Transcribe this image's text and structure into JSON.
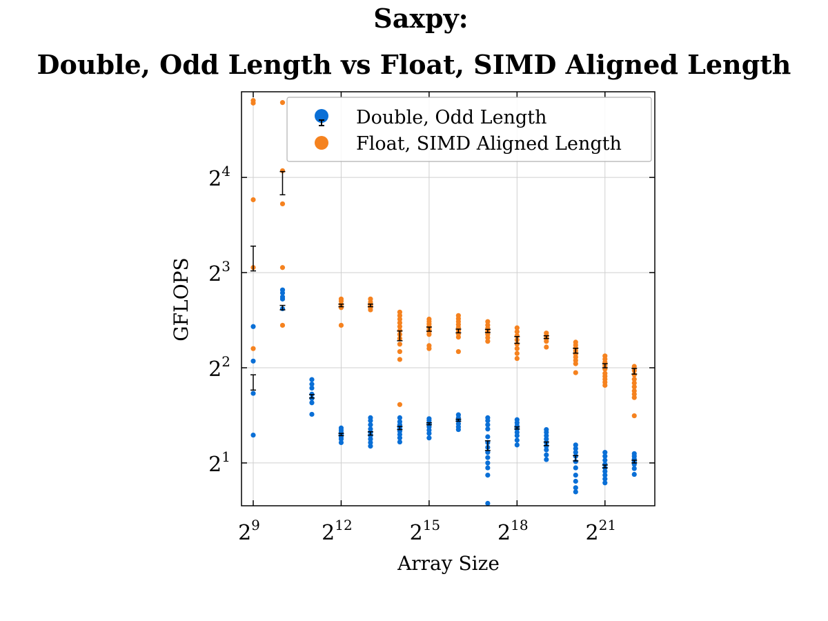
{
  "chart_data": {
    "type": "scatter",
    "title": [
      "Saxpy:",
      "Double, Odd Length vs Float, SIMD Aligned Length"
    ],
    "xlabel": "Array Size",
    "ylabel": "GFLOPS",
    "x_scale": "log2",
    "y_scale": "log2",
    "x_exponent_range": [
      8.6,
      22.7
    ],
    "y_exponent_range": [
      0.55,
      4.9
    ],
    "x_ticks": [
      {
        "exp": 9,
        "base": "2",
        "sup": "9"
      },
      {
        "exp": 12,
        "base": "2",
        "sup": "12"
      },
      {
        "exp": 15,
        "base": "2",
        "sup": "15"
      },
      {
        "exp": 18,
        "base": "2",
        "sup": "18"
      },
      {
        "exp": 21,
        "base": "2",
        "sup": "21"
      }
    ],
    "y_ticks": [
      {
        "exp": 1,
        "base": "2",
        "sup": "1"
      },
      {
        "exp": 2,
        "base": "2",
        "sup": "2"
      },
      {
        "exp": 3,
        "base": "2",
        "sup": "3"
      },
      {
        "exp": 4,
        "base": "2",
        "sup": "4"
      }
    ],
    "grid": true,
    "legend_position": "top-right",
    "colors": {
      "double": "#0a6fd6",
      "float": "#f5821f",
      "errorbar": "#000000",
      "grid": "#cfcfcf"
    },
    "series": [
      {
        "name": "Double, Odd Length",
        "x_exponents": [
          9,
          10,
          11,
          12,
          13,
          14,
          15,
          16,
          17,
          18,
          19,
          20,
          21,
          22
        ],
        "samples": [
          [
            2.45,
            3.32,
            4.2,
            5.4
          ],
          [
            6.15,
            6.6,
            6.7,
            6.9,
            7.05
          ],
          [
            2.85,
            3.1,
            3.2,
            3.3,
            3.45,
            3.55,
            3.67
          ],
          [
            2.32,
            2.38,
            2.42,
            2.46,
            2.5,
            2.54,
            2.58
          ],
          [
            2.26,
            2.32,
            2.38,
            2.44,
            2.5,
            2.56,
            2.64,
            2.72,
            2.78
          ],
          [
            2.33,
            2.4,
            2.46,
            2.52,
            2.58,
            2.64,
            2.7,
            2.78
          ],
          [
            2.4,
            2.48,
            2.54,
            2.6,
            2.66,
            2.72,
            2.76
          ],
          [
            2.55,
            2.6,
            2.66,
            2.72,
            2.78,
            2.84
          ],
          [
            1.49,
            1.83,
            1.93,
            2.0,
            2.08,
            2.16,
            2.24,
            2.32,
            2.42,
            2.56,
            2.64,
            2.72,
            2.78
          ],
          [
            2.28,
            2.36,
            2.44,
            2.5,
            2.56,
            2.62,
            2.68,
            2.74
          ],
          [
            2.05,
            2.12,
            2.2,
            2.26,
            2.32,
            2.38,
            2.44,
            2.5,
            2.55
          ],
          [
            1.62,
            1.67,
            1.75,
            1.83,
            1.93,
            2.02,
            2.1,
            2.16,
            2.22,
            2.28
          ],
          [
            1.73,
            1.78,
            1.83,
            1.88,
            1.93,
            1.98,
            2.04,
            2.1,
            2.16
          ],
          [
            1.84,
            1.92,
            1.98,
            2.02,
            2.06,
            2.1,
            2.14
          ]
        ],
        "mean": [
          3.6,
          6.2,
          3.25,
          2.46,
          2.48,
          2.58,
          2.66,
          2.73,
          2.27,
          2.58,
          2.3,
          2.07,
          1.95,
          2.02
        ],
        "err": [
          0.2,
          0.1,
          0.04,
          0.02,
          0.03,
          0.03,
          0.02,
          0.02,
          0.08,
          0.02,
          0.03,
          0.04,
          0.02,
          0.02
        ]
      },
      {
        "name": "Float, SIMD Aligned Length",
        "x_exponents": [
          9,
          10,
          11,
          12,
          13,
          14,
          15,
          16,
          17,
          18,
          19,
          20,
          21,
          22
        ],
        "samples": [
          [
            4.6,
            8.3,
            13.6,
            27.5,
            28.0
          ],
          [
            5.45,
            8.3,
            13.2,
            16.8,
            27.6
          ],
          [],
          [
            5.45,
            6.2,
            6.35,
            6.5,
            6.6
          ],
          [
            6.1,
            6.2,
            6.3,
            6.45,
            6.6
          ],
          [
            3.06,
            4.25,
            4.5,
            4.75,
            4.95,
            5.1,
            5.25,
            5.4,
            5.55,
            5.7,
            5.85,
            6.0
          ],
          [
            4.6,
            4.7,
            5.1,
            5.2,
            5.3,
            5.4,
            5.5,
            5.6,
            5.7
          ],
          [
            4.5,
            5.0,
            5.12,
            5.24,
            5.36,
            5.48,
            5.6,
            5.72,
            5.85
          ],
          [
            4.85,
            4.98,
            5.1,
            5.22,
            5.34,
            5.46,
            5.6
          ],
          [
            4.28,
            4.44,
            4.6,
            4.75,
            4.9,
            5.05,
            5.2,
            5.35
          ],
          [
            4.65,
            4.85,
            4.95,
            5.05,
            5.15
          ],
          [
            3.86,
            4.12,
            4.22,
            4.32,
            4.42,
            4.52,
            4.62,
            4.72,
            4.82
          ],
          [
            3.52,
            3.6,
            3.68,
            3.76,
            3.84,
            3.96,
            4.06,
            4.16,
            4.26,
            4.36
          ],
          [
            2.82,
            3.22,
            3.3,
            3.38,
            3.48,
            3.58,
            3.68,
            3.8,
            3.92,
            4.04
          ]
        ],
        "mean": [
          8.9,
          15.4,
          null,
          6.3,
          6.3,
          5.05,
          5.3,
          5.23,
          5.23,
          4.9,
          5.0,
          4.53,
          4.06,
          3.9
        ],
        "err": [
          0.8,
          1.3,
          null,
          0.06,
          0.06,
          0.18,
          0.08,
          0.07,
          0.06,
          0.12,
          0.05,
          0.08,
          0.06,
          0.08
        ]
      }
    ]
  }
}
